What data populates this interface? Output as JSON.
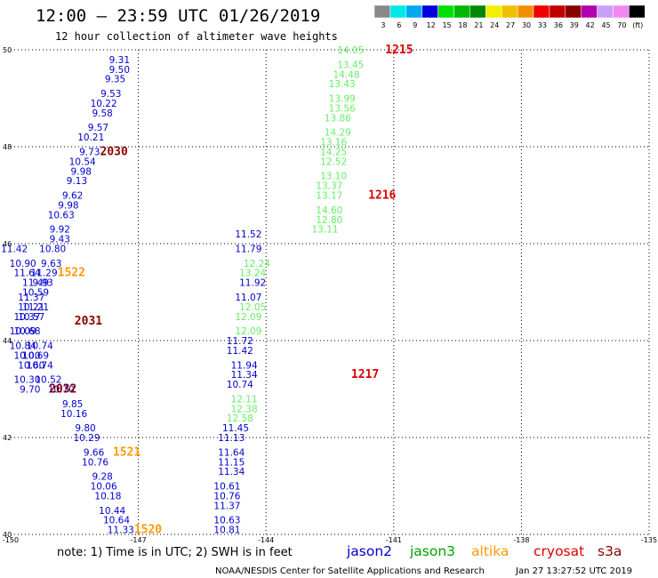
{
  "header": {
    "title": "12:00 – 23:59 UTC 01/26/2019",
    "subtitle": "12 hour collection of altimeter wave heights"
  },
  "legend": {
    "unit": "(ft)",
    "bins": [
      {
        "label": "3",
        "color": "#888888"
      },
      {
        "label": "6",
        "color": "#00e8e8"
      },
      {
        "label": "9",
        "color": "#00a8f0"
      },
      {
        "label": "12",
        "color": "#0000e0"
      },
      {
        "label": "15",
        "color": "#00e000"
      },
      {
        "label": "18",
        "color": "#00b800"
      },
      {
        "label": "21",
        "color": "#008800"
      },
      {
        "label": "24",
        "color": "#f0f000"
      },
      {
        "label": "27",
        "color": "#f0c000"
      },
      {
        "label": "30",
        "color": "#f09000"
      },
      {
        "label": "33",
        "color": "#f00000"
      },
      {
        "label": "36",
        "color": "#c00000"
      },
      {
        "label": "39",
        "color": "#880000"
      },
      {
        "label": "42",
        "color": "#b000b0"
      },
      {
        "label": "45",
        "color": "#c8a0f8"
      },
      {
        "label": "70",
        "color": "#f088f0"
      },
      {
        "label": "",
        "color": "#000000"
      }
    ]
  },
  "footer": {
    "note": "note:  1) Time is in UTC;  2) SWH is in feet",
    "satellites": [
      {
        "name": "jason2",
        "color": "#0000cc"
      },
      {
        "name": "jason3",
        "color": "#00a000"
      },
      {
        "name": "altika",
        "color": "#ff9900"
      },
      {
        "name": "cryosat",
        "color": "#dd0000"
      },
      {
        "name": "s3a",
        "color": "#880000"
      }
    ],
    "credit": "NOAA/NESDIS Center for Satellite Applications and Research",
    "timestamp": "Jan 27 13:27:52 UTC 2019"
  },
  "chart_data": {
    "type": "scatter",
    "title": "12:00 – 23:59 UTC 01/26/2019",
    "subtitle": "12 hour collection of altimeter wave heights",
    "xlim": [
      -150,
      -135
    ],
    "ylim": [
      40,
      50
    ],
    "x_ticks": [
      -150,
      -147,
      -144,
      -141,
      -138,
      -135
    ],
    "x_tick_labels": [
      "-150",
      "-147",
      "-144",
      "-141",
      "-138",
      "-135"
    ],
    "y_ticks": [
      40,
      42,
      44,
      46,
      48,
      50
    ],
    "y_tick_labels": [
      "40",
      "42",
      "44",
      "46",
      "48",
      "50"
    ],
    "grid": true,
    "series": [
      {
        "name": "jason2",
        "color": "#0000cc",
        "labels": [
          {
            "lon": -147.2,
            "lat": 49.8,
            "value": "9.31"
          },
          {
            "lon": -147.2,
            "lat": 49.6,
            "value": "9.50"
          },
          {
            "lon": -147.3,
            "lat": 49.4,
            "value": "9.35"
          },
          {
            "lon": -147.4,
            "lat": 49.1,
            "value": "9.53"
          },
          {
            "lon": -147.5,
            "lat": 48.9,
            "value": "10.22"
          },
          {
            "lon": -147.6,
            "lat": 48.7,
            "value": "9.58"
          },
          {
            "lon": -147.7,
            "lat": 48.4,
            "value": "9.57"
          },
          {
            "lon": -147.8,
            "lat": 48.2,
            "value": "10.21"
          },
          {
            "lon": -147.9,
            "lat": 47.9,
            "value": "9.73"
          },
          {
            "lon": -148.0,
            "lat": 47.7,
            "value": "10.54"
          },
          {
            "lon": -148.1,
            "lat": 47.5,
            "value": "9.98"
          },
          {
            "lon": -148.2,
            "lat": 47.3,
            "value": "9.13"
          },
          {
            "lon": -148.3,
            "lat": 47.0,
            "value": "9.62"
          },
          {
            "lon": -148.4,
            "lat": 46.8,
            "value": "9.98"
          },
          {
            "lon": -148.5,
            "lat": 46.6,
            "value": "10.63"
          },
          {
            "lon": -148.6,
            "lat": 46.3,
            "value": "9.92"
          },
          {
            "lon": -148.6,
            "lat": 46.1,
            "value": "9.43"
          },
          {
            "lon": -148.7,
            "lat": 45.9,
            "value": "10.80"
          },
          {
            "lon": -148.8,
            "lat": 45.6,
            "value": "9.63"
          },
          {
            "lon": -148.9,
            "lat": 45.4,
            "value": "11.29"
          },
          {
            "lon": -149.0,
            "lat": 45.2,
            "value": "9.93"
          },
          {
            "lon": -149.1,
            "lat": 45.0,
            "value": "10.59"
          },
          {
            "lon": -149.2,
            "lat": 44.7,
            "value": "10.21"
          },
          {
            "lon": -149.3,
            "lat": 44.5,
            "value": "10.37"
          },
          {
            "lon": -149.4,
            "lat": 44.2,
            "value": "10.09"
          },
          {
            "lon": -149.0,
            "lat": 43.9,
            "value": "10.74"
          },
          {
            "lon": -149.1,
            "lat": 43.7,
            "value": "10.69"
          },
          {
            "lon": -149.0,
            "lat": 43.5,
            "value": "10.74"
          },
          {
            "lon": -148.8,
            "lat": 43.2,
            "value": "10.52"
          },
          {
            "lon": -148.5,
            "lat": 43.0,
            "value": "10.70"
          },
          {
            "lon": -148.3,
            "lat": 42.7,
            "value": "9.85"
          },
          {
            "lon": -148.2,
            "lat": 42.5,
            "value": "10.16"
          },
          {
            "lon": -148.0,
            "lat": 42.2,
            "value": "9.80"
          },
          {
            "lon": -147.9,
            "lat": 42.0,
            "value": "10.29"
          },
          {
            "lon": -147.8,
            "lat": 41.7,
            "value": "9.66"
          },
          {
            "lon": -147.7,
            "lat": 41.5,
            "value": "10.76"
          },
          {
            "lon": -147.6,
            "lat": 41.2,
            "value": "9.28"
          },
          {
            "lon": -147.5,
            "lat": 41.0,
            "value": "10.06"
          },
          {
            "lon": -147.4,
            "lat": 40.8,
            "value": "10.18"
          },
          {
            "lon": -147.3,
            "lat": 40.5,
            "value": "10.44"
          },
          {
            "lon": -147.2,
            "lat": 40.3,
            "value": "10.64"
          },
          {
            "lon": -147.1,
            "lat": 40.1,
            "value": "11.33"
          },
          {
            "lon": -149.6,
            "lat": 45.9,
            "value": "11.42"
          },
          {
            "lon": -149.4,
            "lat": 45.6,
            "value": "10.90"
          },
          {
            "lon": -149.3,
            "lat": 45.4,
            "value": "11.64"
          },
          {
            "lon": -149.1,
            "lat": 45.2,
            "value": "11.49"
          },
          {
            "lon": -149.2,
            "lat": 44.9,
            "value": "11.37"
          },
          {
            "lon": -149.1,
            "lat": 44.7,
            "value": "11.21"
          },
          {
            "lon": -149.2,
            "lat": 44.5,
            "value": "10.57"
          },
          {
            "lon": -149.3,
            "lat": 44.2,
            "value": "10.68"
          },
          {
            "lon": -149.4,
            "lat": 43.9,
            "value": "10.84"
          },
          {
            "lon": -149.3,
            "lat": 43.7,
            "value": "10.00"
          },
          {
            "lon": -149.2,
            "lat": 43.5,
            "value": "10.60"
          },
          {
            "lon": -149.3,
            "lat": 43.2,
            "value": "10.30"
          },
          {
            "lon": -149.3,
            "lat": 43.0,
            "value": "9.70"
          },
          {
            "lon": -144.1,
            "lat": 46.2,
            "value": "11.52"
          },
          {
            "lon": -144.1,
            "lat": 45.9,
            "value": "11.79"
          },
          {
            "lon": -144.0,
            "lat": 45.2,
            "value": "11.92"
          },
          {
            "lon": -144.1,
            "lat": 44.9,
            "value": "11.07"
          },
          {
            "lon": -144.3,
            "lat": 44.0,
            "value": "11.72"
          },
          {
            "lon": -144.3,
            "lat": 43.8,
            "value": "11.42"
          },
          {
            "lon": -144.2,
            "lat": 43.5,
            "value": "11.94"
          },
          {
            "lon": -144.2,
            "lat": 43.3,
            "value": "11.34"
          },
          {
            "lon": -144.3,
            "lat": 43.1,
            "value": "10.74"
          },
          {
            "lon": -144.4,
            "lat": 42.2,
            "value": "11.45"
          },
          {
            "lon": -144.5,
            "lat": 42.0,
            "value": "11.13"
          },
          {
            "lon": -144.5,
            "lat": 41.7,
            "value": "11.64"
          },
          {
            "lon": -144.5,
            "lat": 41.5,
            "value": "11.15"
          },
          {
            "lon": -144.5,
            "lat": 41.3,
            "value": "11.34"
          },
          {
            "lon": -144.6,
            "lat": 41.0,
            "value": "10.61"
          },
          {
            "lon": -144.6,
            "lat": 40.8,
            "value": "10.76"
          },
          {
            "lon": -144.6,
            "lat": 40.6,
            "value": "11.37"
          },
          {
            "lon": -144.6,
            "lat": 40.3,
            "value": "10.63"
          },
          {
            "lon": -144.6,
            "lat": 40.1,
            "value": "10.81"
          }
        ]
      },
      {
        "name": "jason3",
        "color": "#66ee66",
        "labels": [
          {
            "lon": -141.7,
            "lat": 50.0,
            "value": "14.05"
          },
          {
            "lon": -141.7,
            "lat": 49.7,
            "value": "13.45"
          },
          {
            "lon": -141.8,
            "lat": 49.5,
            "value": "14.48"
          },
          {
            "lon": -141.9,
            "lat": 49.3,
            "value": "13.43"
          },
          {
            "lon": -141.9,
            "lat": 49.0,
            "value": "13.99"
          },
          {
            "lon": -141.9,
            "lat": 48.8,
            "value": "13.56"
          },
          {
            "lon": -142.0,
            "lat": 48.6,
            "value": "13.86"
          },
          {
            "lon": -142.0,
            "lat": 48.3,
            "value": "14.29"
          },
          {
            "lon": -142.1,
            "lat": 48.1,
            "value": "13.16"
          },
          {
            "lon": -142.1,
            "lat": 47.9,
            "value": "14.25"
          },
          {
            "lon": -142.1,
            "lat": 47.7,
            "value": "12.52"
          },
          {
            "lon": -142.1,
            "lat": 47.4,
            "value": "13.10"
          },
          {
            "lon": -142.2,
            "lat": 47.2,
            "value": "13.37"
          },
          {
            "lon": -142.2,
            "lat": 47.0,
            "value": "13.17"
          },
          {
            "lon": -142.2,
            "lat": 46.7,
            "value": "14.60"
          },
          {
            "lon": -142.2,
            "lat": 46.5,
            "value": "12.80"
          },
          {
            "lon": -142.3,
            "lat": 46.3,
            "value": "13.11"
          },
          {
            "lon": -143.9,
            "lat": 45.6,
            "value": "12.24"
          },
          {
            "lon": -144.0,
            "lat": 45.4,
            "value": "13.24"
          },
          {
            "lon": -144.0,
            "lat": 44.7,
            "value": "12.05"
          },
          {
            "lon": -144.1,
            "lat": 44.5,
            "value": "12.09"
          },
          {
            "lon": -144.1,
            "lat": 44.2,
            "value": "12.09"
          },
          {
            "lon": -144.2,
            "lat": 42.8,
            "value": "12.11"
          },
          {
            "lon": -144.2,
            "lat": 42.6,
            "value": "12.38"
          },
          {
            "lon": -144.3,
            "lat": 42.4,
            "value": "12.58"
          }
        ]
      },
      {
        "name": "time stamps",
        "color": "#000000",
        "labels": [
          {
            "lon": -141.2,
            "lat": 50.0,
            "value": "1215",
            "color": "#dd0000"
          },
          {
            "lon": -141.6,
            "lat": 47.0,
            "value": "1216",
            "color": "#dd0000"
          },
          {
            "lon": -142.0,
            "lat": 43.3,
            "value": "1217",
            "color": "#dd0000"
          },
          {
            "lon": -147.9,
            "lat": 47.9,
            "value": "2030",
            "color": "#880000"
          },
          {
            "lon": -148.5,
            "lat": 44.4,
            "value": "2031",
            "color": "#880000"
          },
          {
            "lon": -149.1,
            "lat": 43.0,
            "value": "2032",
            "color": "#880000"
          },
          {
            "lon": -148.9,
            "lat": 45.4,
            "value": "1522",
            "color": "#ff9900"
          },
          {
            "lon": -147.6,
            "lat": 41.7,
            "value": "1521",
            "color": "#ff9900"
          },
          {
            "lon": -147.1,
            "lat": 40.1,
            "value": "1520",
            "color": "#ff9900"
          }
        ]
      }
    ]
  }
}
